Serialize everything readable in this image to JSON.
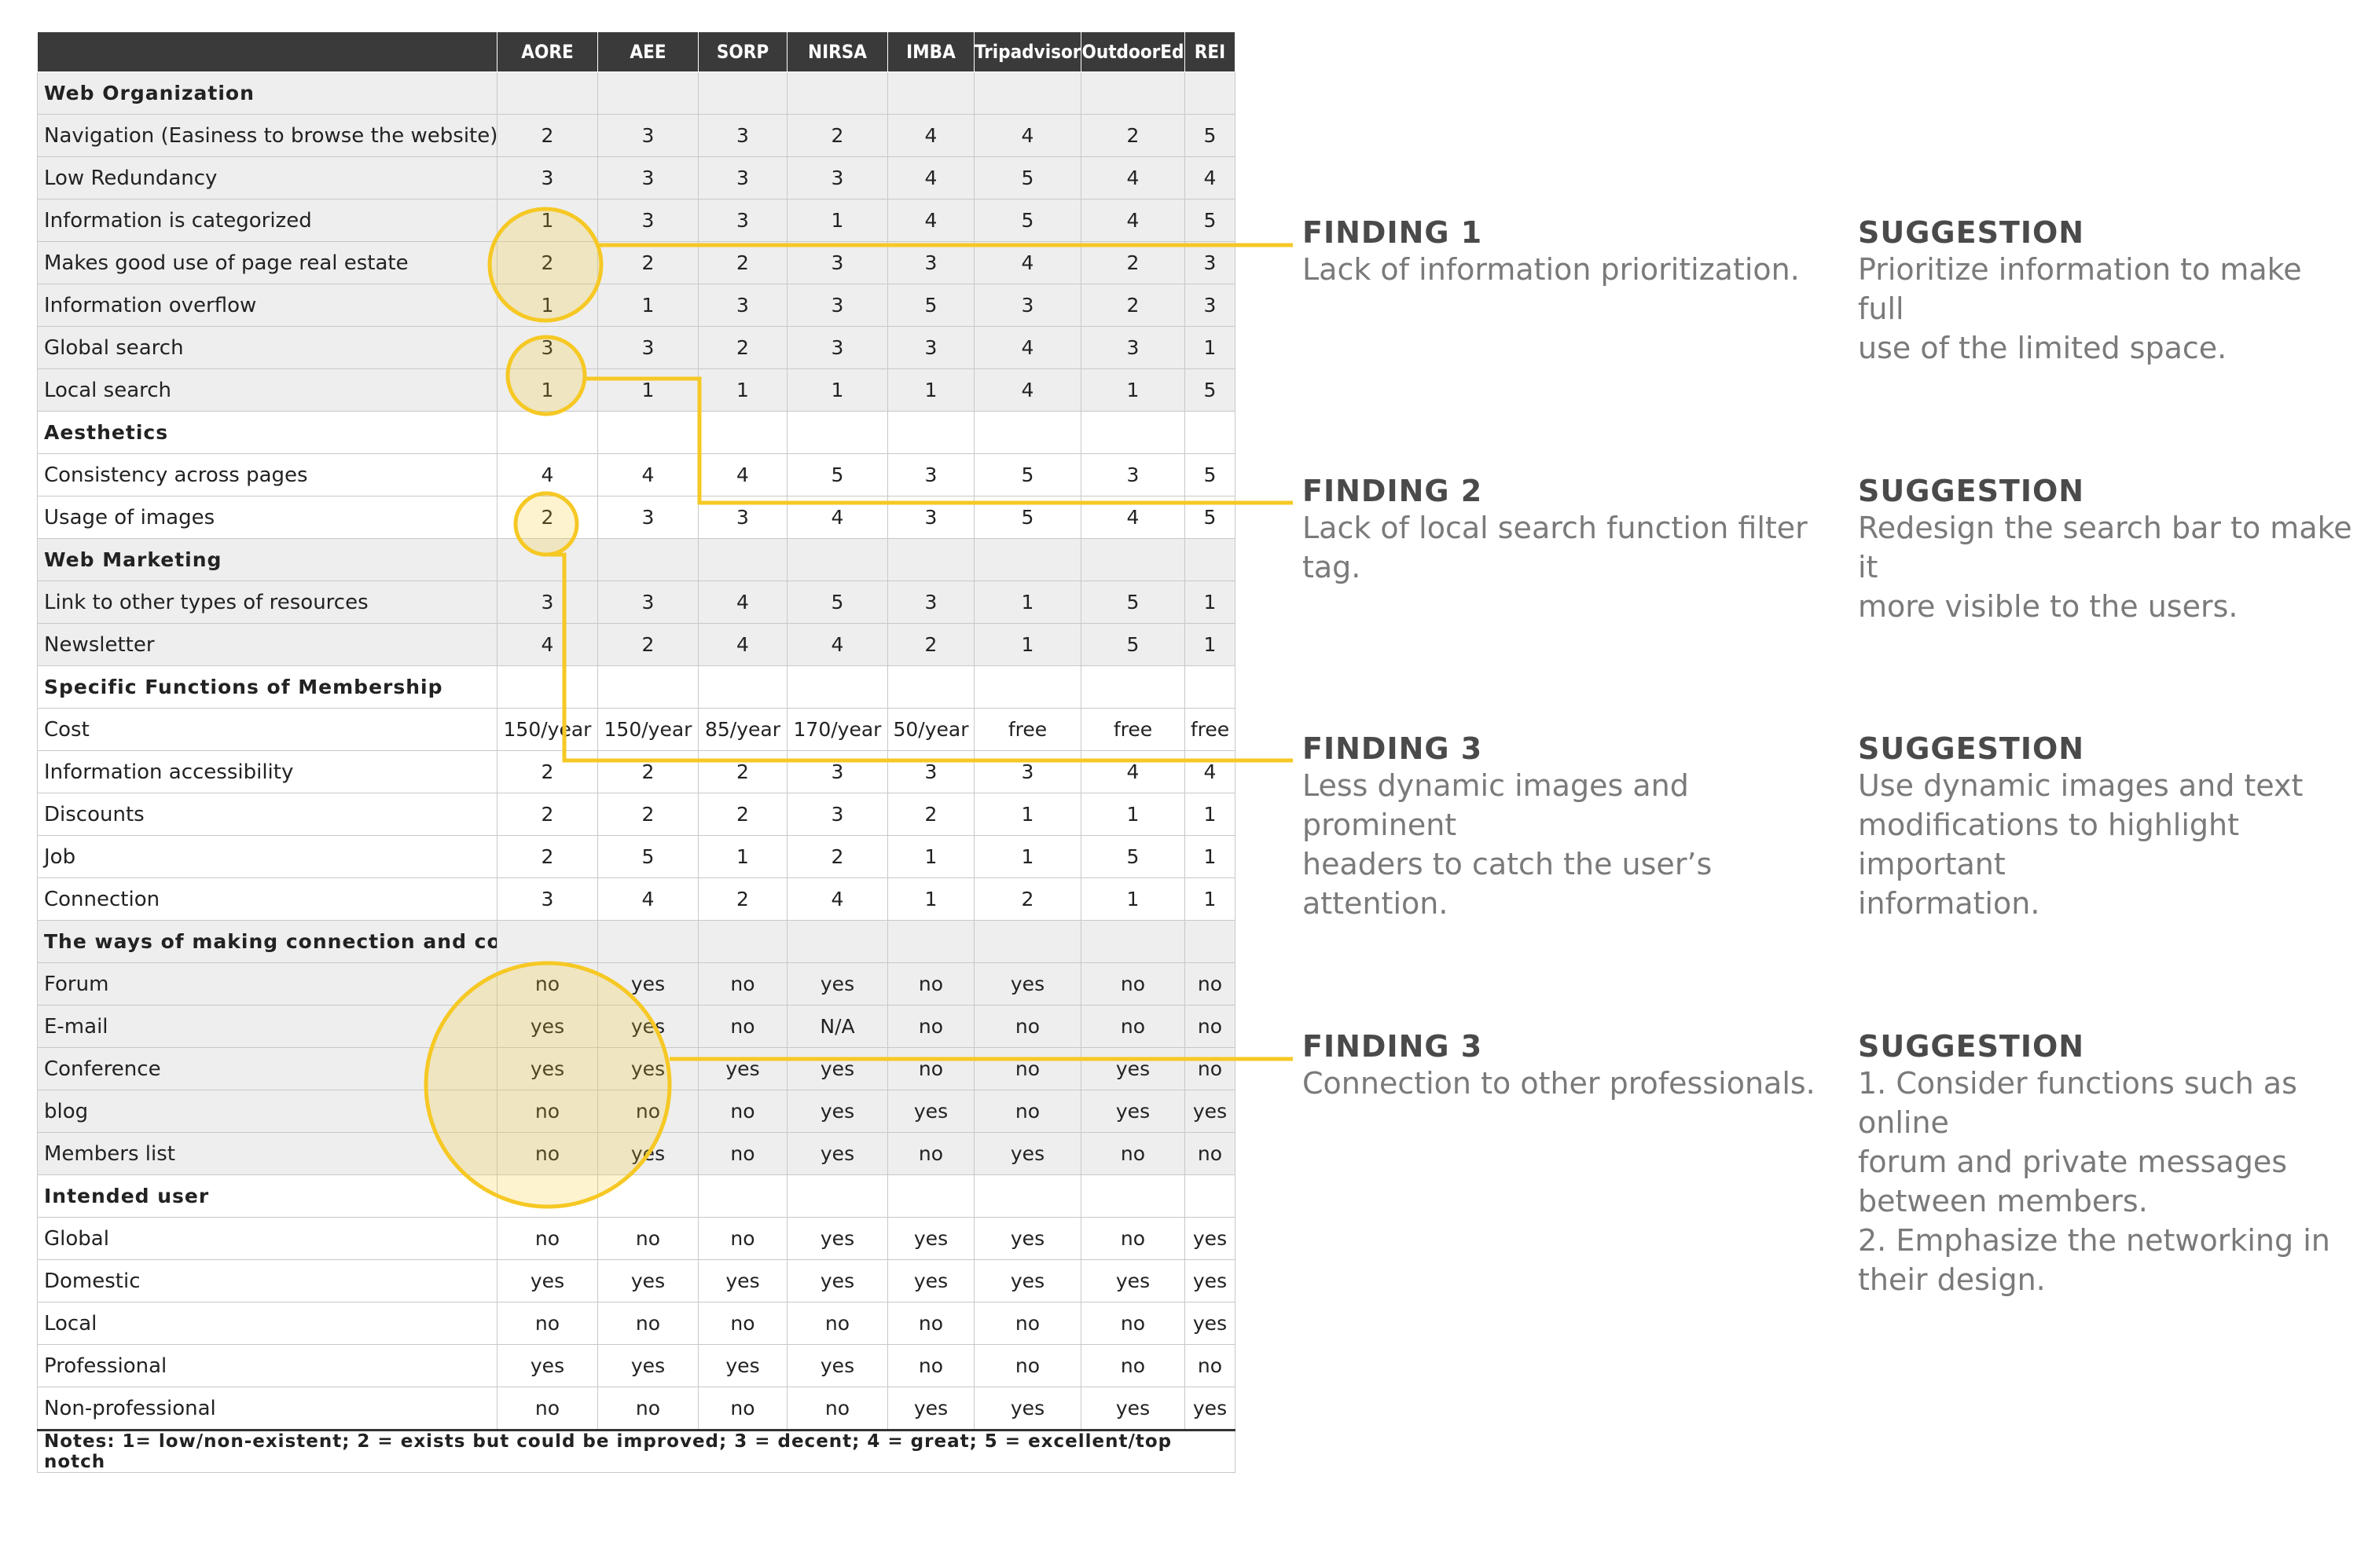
{
  "table": {
    "headers": [
      "",
      "AORE",
      "AEE",
      "SORP",
      "NIRSA",
      "IMBA",
      "Tripadvisor",
      "OutdoorEd",
      "REI"
    ],
    "rows": [
      {
        "kind": "section",
        "shade": "grey",
        "label": "Web Organization"
      },
      {
        "kind": "data",
        "shade": "grey",
        "label": "Navigation (Easiness to browse the website)",
        "values": [
          "2",
          "3",
          "3",
          "2",
          "4",
          "4",
          "2",
          "5"
        ]
      },
      {
        "kind": "data",
        "shade": "grey",
        "label": "Low Redundancy",
        "values": [
          "3",
          "3",
          "3",
          "3",
          "4",
          "5",
          "4",
          "4"
        ]
      },
      {
        "kind": "data",
        "shade": "grey",
        "label": "Information is categorized",
        "values": [
          "1",
          "3",
          "3",
          "1",
          "4",
          "5",
          "4",
          "5"
        ]
      },
      {
        "kind": "data",
        "shade": "grey",
        "label": "Makes good use of page real estate",
        "values": [
          "2",
          "2",
          "2",
          "3",
          "3",
          "4",
          "2",
          "3"
        ]
      },
      {
        "kind": "data",
        "shade": "grey",
        "label": "Information overflow",
        "values": [
          "1",
          "1",
          "3",
          "3",
          "5",
          "3",
          "2",
          "3"
        ]
      },
      {
        "kind": "data",
        "shade": "grey",
        "label": "Global search",
        "values": [
          "3",
          "3",
          "2",
          "3",
          "3",
          "4",
          "3",
          "1"
        ]
      },
      {
        "kind": "data",
        "shade": "grey",
        "label": "Local search",
        "values": [
          "1",
          "1",
          "1",
          "1",
          "1",
          "4",
          "1",
          "5"
        ]
      },
      {
        "kind": "section",
        "shade": "white",
        "label": "Aesthetics"
      },
      {
        "kind": "data",
        "shade": "white",
        "label": "Consistency across pages",
        "values": [
          "4",
          "4",
          "4",
          "5",
          "3",
          "5",
          "3",
          "5"
        ]
      },
      {
        "kind": "data",
        "shade": "white",
        "label": "Usage of images",
        "values": [
          "2",
          "3",
          "3",
          "4",
          "3",
          "5",
          "4",
          "5"
        ]
      },
      {
        "kind": "section",
        "shade": "grey",
        "label": "Web Marketing"
      },
      {
        "kind": "data",
        "shade": "grey",
        "label": "Link to other types of resources",
        "values": [
          "3",
          "3",
          "4",
          "5",
          "3",
          "1",
          "5",
          "1"
        ]
      },
      {
        "kind": "data",
        "shade": "grey",
        "label": "Newsletter",
        "values": [
          "4",
          "2",
          "4",
          "4",
          "2",
          "1",
          "5",
          "1"
        ]
      },
      {
        "kind": "section",
        "shade": "white",
        "label": "Specific Functions of Membership"
      },
      {
        "kind": "data",
        "shade": "white",
        "label": "Cost",
        "values": [
          "150/year",
          "150/year",
          "85/year",
          "170/year",
          "50/year",
          "free",
          "free",
          "free"
        ]
      },
      {
        "kind": "data",
        "shade": "white",
        "label": "Information accessibility",
        "values": [
          "2",
          "2",
          "2",
          "3",
          "3",
          "3",
          "4",
          "4"
        ]
      },
      {
        "kind": "data",
        "shade": "white",
        "label": "Discounts",
        "values": [
          "2",
          "2",
          "2",
          "3",
          "2",
          "1",
          "1",
          "1"
        ]
      },
      {
        "kind": "data",
        "shade": "white",
        "label": "Job",
        "values": [
          "2",
          "5",
          "1",
          "2",
          "1",
          "1",
          "5",
          "1"
        ]
      },
      {
        "kind": "data",
        "shade": "white",
        "label": "Connection",
        "values": [
          "3",
          "4",
          "2",
          "4",
          "1",
          "2",
          "1",
          "1"
        ]
      },
      {
        "kind": "section",
        "shade": "grey",
        "label": "The ways of making connection and communication"
      },
      {
        "kind": "data",
        "shade": "grey",
        "label": "Forum",
        "values": [
          "no",
          "yes",
          "no",
          "yes",
          "no",
          "yes",
          "no",
          "no"
        ]
      },
      {
        "kind": "data",
        "shade": "grey",
        "label": "E-mail",
        "values": [
          "yes",
          "yes",
          "no",
          "N/A",
          "no",
          "no",
          "no",
          "no"
        ]
      },
      {
        "kind": "data",
        "shade": "grey",
        "label": "Conference",
        "values": [
          "yes",
          "yes",
          "yes",
          "yes",
          "no",
          "no",
          "yes",
          "no"
        ]
      },
      {
        "kind": "data",
        "shade": "grey",
        "label": "blog",
        "values": [
          "no",
          "no",
          "no",
          "yes",
          "yes",
          "no",
          "yes",
          "yes"
        ]
      },
      {
        "kind": "data",
        "shade": "grey",
        "label": "Members list",
        "values": [
          "no",
          "yes",
          "no",
          "yes",
          "no",
          "yes",
          "no",
          "no"
        ]
      },
      {
        "kind": "section",
        "shade": "white",
        "label": "Intended user"
      },
      {
        "kind": "data",
        "shade": "white",
        "label": "Global",
        "values": [
          "no",
          "no",
          "no",
          "yes",
          "yes",
          "yes",
          "no",
          "yes"
        ]
      },
      {
        "kind": "data",
        "shade": "white",
        "label": "Domestic",
        "values": [
          "yes",
          "yes",
          "yes",
          "yes",
          "yes",
          "yes",
          "yes",
          "yes"
        ]
      },
      {
        "kind": "data",
        "shade": "white",
        "label": "Local",
        "values": [
          "no",
          "no",
          "no",
          "no",
          "no",
          "no",
          "no",
          "yes"
        ]
      },
      {
        "kind": "data",
        "shade": "white",
        "label": "Professional",
        "values": [
          "yes",
          "yes",
          "yes",
          "yes",
          "no",
          "no",
          "no",
          "no"
        ]
      },
      {
        "kind": "data",
        "shade": "white",
        "label": "Non-professional",
        "values": [
          "no",
          "no",
          "no",
          "no",
          "yes",
          "yes",
          "yes",
          "yes"
        ]
      }
    ],
    "notes": "Notes: 1= low/non-existent; 2 = exists but could be improved; 3 = decent; 4 = great; 5 = excellent/top notch"
  },
  "findings": [
    {
      "title": "FINDING 1",
      "text": "Lack of information prioritization.",
      "suggestion_title": "SUGGESTION",
      "suggestion": "Prioritize information to make full\nuse of the limited space."
    },
    {
      "title": "FINDING 2",
      "text": "Lack of local search function filter tag.",
      "suggestion_title": "SUGGESTION",
      "suggestion": "Redesign the search bar to make it\nmore visible to the users."
    },
    {
      "title": "FINDING 3",
      "text": "Less dynamic images and prominent\nheaders to catch the user’s  attention.",
      "suggestion_title": "SUGGESTION",
      "suggestion": "Use dynamic images and text\nmodifications to highlight important\ninformation."
    },
    {
      "title": "FINDING 3",
      "text": "Connection to other professionals.",
      "suggestion_title": "SUGGESTION",
      "suggestion": "1. Consider functions such as online\nforum and private messages\nbetween members.\n2. Emphasize the networking in\ntheir design."
    }
  ],
  "colors": {
    "highlight": "#f6c824",
    "highlight_fill": "rgba(246,200,36,0.22)",
    "header_bg": "#3a3a3a",
    "row_grey": "#eeeeee"
  }
}
